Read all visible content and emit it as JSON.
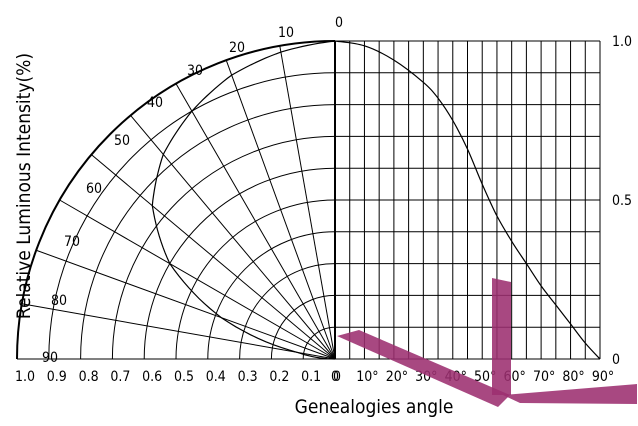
{
  "chart_data": [
    {
      "type": "polar",
      "title": "",
      "angle_ticks": [
        "0",
        "10",
        "20",
        "30",
        "40",
        "50",
        "60",
        "70",
        "80",
        "90"
      ],
      "radius_ticks": [
        "1.0",
        "0.9",
        "0.8",
        "0.7",
        "0.6",
        "0.5",
        "0.4",
        "0.3",
        "0.2",
        "0.1",
        "0"
      ],
      "series": [
        {
          "angle_deg": [
            0,
            10,
            20,
            30,
            40,
            50,
            60,
            70,
            75,
            80
          ],
          "relative_intensity": [
            1.0,
            0.98,
            0.95,
            0.9,
            0.84,
            0.75,
            0.6,
            0.38,
            0.25,
            0.12
          ]
        }
      ]
    },
    {
      "type": "line",
      "title": "",
      "xlabel": "Genealogies angle",
      "ylabel": "Relative Luminous Intensity(%)",
      "x_ticks": [
        "0",
        "10°",
        "20°",
        "30°",
        "40°",
        "50°",
        "60°",
        "70°",
        "80°",
        "90°"
      ],
      "y_ticks": [
        "0",
        "0.5",
        "1.0"
      ],
      "xlim": [
        0,
        90
      ],
      "ylim": [
        0,
        1.0
      ],
      "grid": true,
      "series": [
        {
          "x": [
            0,
            10,
            20,
            30,
            35,
            40,
            45,
            50,
            55,
            60,
            65,
            70,
            75,
            80,
            85,
            90
          ],
          "y": [
            1.0,
            0.985,
            0.94,
            0.87,
            0.82,
            0.75,
            0.66,
            0.55,
            0.45,
            0.37,
            0.3,
            0.23,
            0.17,
            0.11,
            0.05,
            0.0
          ]
        }
      ]
    }
  ]
}
